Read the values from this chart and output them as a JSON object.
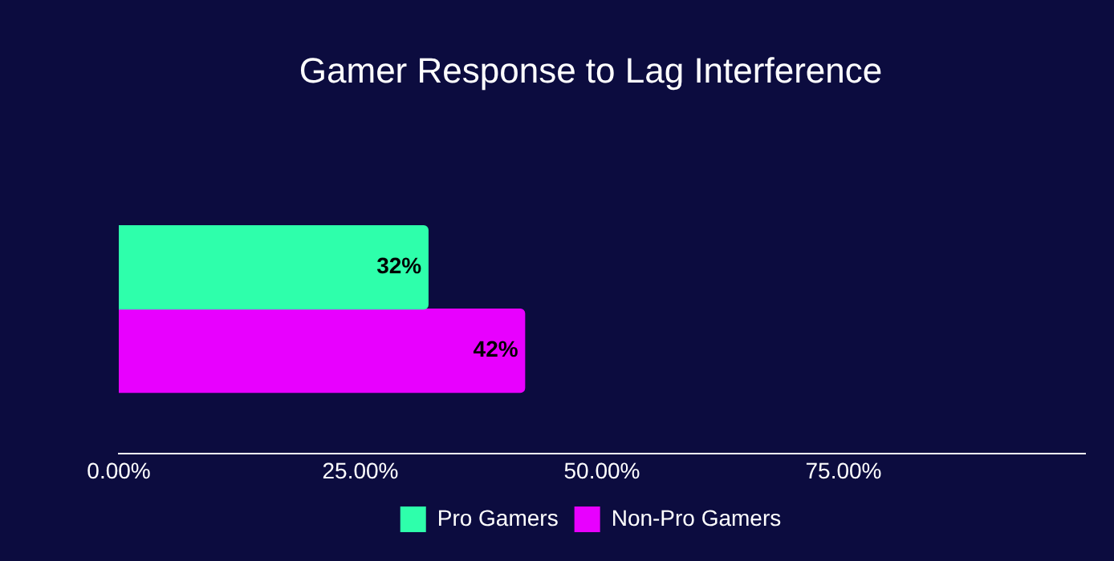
{
  "chart_data": {
    "type": "bar",
    "orientation": "horizontal",
    "title": "Gamer Response to Lag Interference",
    "categories": [
      null
    ],
    "series": [
      {
        "name": "Pro Gamers",
        "color": "#2effab",
        "values": [
          32
        ],
        "value_labels": [
          "32%"
        ]
      },
      {
        "name": "Non-Pro Gamers",
        "color": "#e800ff",
        "values": [
          42
        ],
        "value_labels": [
          "42%"
        ]
      }
    ],
    "xlim": [
      0,
      100
    ],
    "xticks": [
      {
        "value": 0,
        "label": "0.00%"
      },
      {
        "value": 25,
        "label": "25.00%"
      },
      {
        "value": 50,
        "label": "50.00%"
      },
      {
        "value": 75,
        "label": "75.00%"
      }
    ],
    "grid": false,
    "legend": "bottom"
  }
}
